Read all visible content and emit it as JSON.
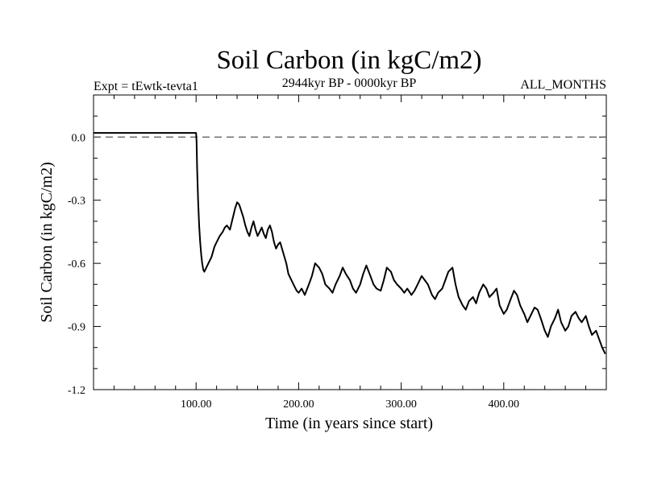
{
  "chart_data": {
    "type": "line",
    "title": "Soil Carbon (in kgC/m2)",
    "experiment": "Expt = tEwtk-tevta1",
    "period": "2944kyr BP - 0000kyr BP",
    "months": "ALL_MONTHS",
    "xlabel": "Time (in years since start)",
    "ylabel": "Soil Carbon (in kgC/m2)",
    "xlim": [
      0,
      500
    ],
    "ylim": [
      -1.2,
      0.2
    ],
    "x_ticks": [
      100,
      200,
      300,
      400
    ],
    "x_tick_labels": [
      "100.00",
      "200.00",
      "300.00",
      "400.00"
    ],
    "y_ticks": [
      0.0,
      -0.3,
      -0.6,
      -0.9,
      -1.2
    ],
    "y_tick_labels": [
      "0.0",
      "-0.3",
      "-0.6",
      "-0.9",
      "-1.2"
    ],
    "zero_line": 0.0,
    "series": [
      {
        "name": "Soil Carbon",
        "x": [
          0,
          100,
          100.5,
          101,
          102,
          103,
          104,
          105,
          106,
          107,
          108,
          110,
          112,
          115,
          118,
          120,
          123,
          126,
          128,
          130,
          133,
          136,
          138,
          140,
          142,
          144,
          146,
          148,
          150,
          152,
          154,
          156,
          158,
          160,
          162,
          164,
          166,
          168,
          170,
          172,
          174,
          176,
          178,
          180,
          182,
          185,
          188,
          190,
          192,
          195,
          198,
          200,
          203,
          206,
          210,
          213,
          216,
          220,
          223,
          226,
          230,
          233,
          236,
          240,
          243,
          246,
          250,
          253,
          256,
          260,
          263,
          266,
          270,
          273,
          276,
          280,
          283,
          286,
          290,
          293,
          296,
          300,
          303,
          306,
          310,
          313,
          316,
          320,
          323,
          326,
          330,
          333,
          336,
          340,
          343,
          346,
          350,
          353,
          356,
          360,
          363,
          366,
          370,
          373,
          376,
          380,
          383,
          386,
          390,
          393,
          396,
          400,
          403,
          406,
          410,
          413,
          416,
          420,
          423,
          426,
          430,
          433,
          436,
          440,
          443,
          446,
          450,
          453,
          456,
          460,
          463,
          466,
          470,
          473,
          476,
          480,
          483,
          486,
          490,
          493,
          496,
          499
        ],
        "y": [
          0.02,
          0.02,
          -0.02,
          -0.15,
          -0.3,
          -0.42,
          -0.5,
          -0.56,
          -0.6,
          -0.63,
          -0.64,
          -0.62,
          -0.6,
          -0.57,
          -0.52,
          -0.5,
          -0.47,
          -0.45,
          -0.43,
          -0.42,
          -0.44,
          -0.38,
          -0.34,
          -0.31,
          -0.32,
          -0.35,
          -0.38,
          -0.42,
          -0.45,
          -0.47,
          -0.43,
          -0.4,
          -0.44,
          -0.47,
          -0.45,
          -0.43,
          -0.46,
          -0.48,
          -0.44,
          -0.42,
          -0.45,
          -0.5,
          -0.53,
          -0.51,
          -0.5,
          -0.55,
          -0.6,
          -0.65,
          -0.67,
          -0.7,
          -0.73,
          -0.74,
          -0.72,
          -0.75,
          -0.7,
          -0.66,
          -0.6,
          -0.62,
          -0.65,
          -0.7,
          -0.72,
          -0.74,
          -0.7,
          -0.66,
          -0.62,
          -0.65,
          -0.68,
          -0.72,
          -0.74,
          -0.7,
          -0.65,
          -0.61,
          -0.66,
          -0.7,
          -0.72,
          -0.73,
          -0.68,
          -0.62,
          -0.64,
          -0.68,
          -0.7,
          -0.72,
          -0.74,
          -0.72,
          -0.75,
          -0.73,
          -0.7,
          -0.66,
          -0.68,
          -0.7,
          -0.75,
          -0.77,
          -0.74,
          -0.72,
          -0.68,
          -0.64,
          -0.62,
          -0.7,
          -0.76,
          -0.8,
          -0.82,
          -0.78,
          -0.76,
          -0.79,
          -0.74,
          -0.7,
          -0.72,
          -0.76,
          -0.74,
          -0.72,
          -0.8,
          -0.84,
          -0.82,
          -0.78,
          -0.73,
          -0.75,
          -0.8,
          -0.84,
          -0.88,
          -0.85,
          -0.81,
          -0.82,
          -0.86,
          -0.92,
          -0.95,
          -0.9,
          -0.86,
          -0.82,
          -0.88,
          -0.92,
          -0.9,
          -0.85,
          -0.83,
          -0.86,
          -0.88,
          -0.85,
          -0.9,
          -0.94,
          -0.92,
          -0.96,
          -1.0,
          -1.03
        ]
      }
    ],
    "line_color": "#000000",
    "zero_line_color": "#555555"
  }
}
